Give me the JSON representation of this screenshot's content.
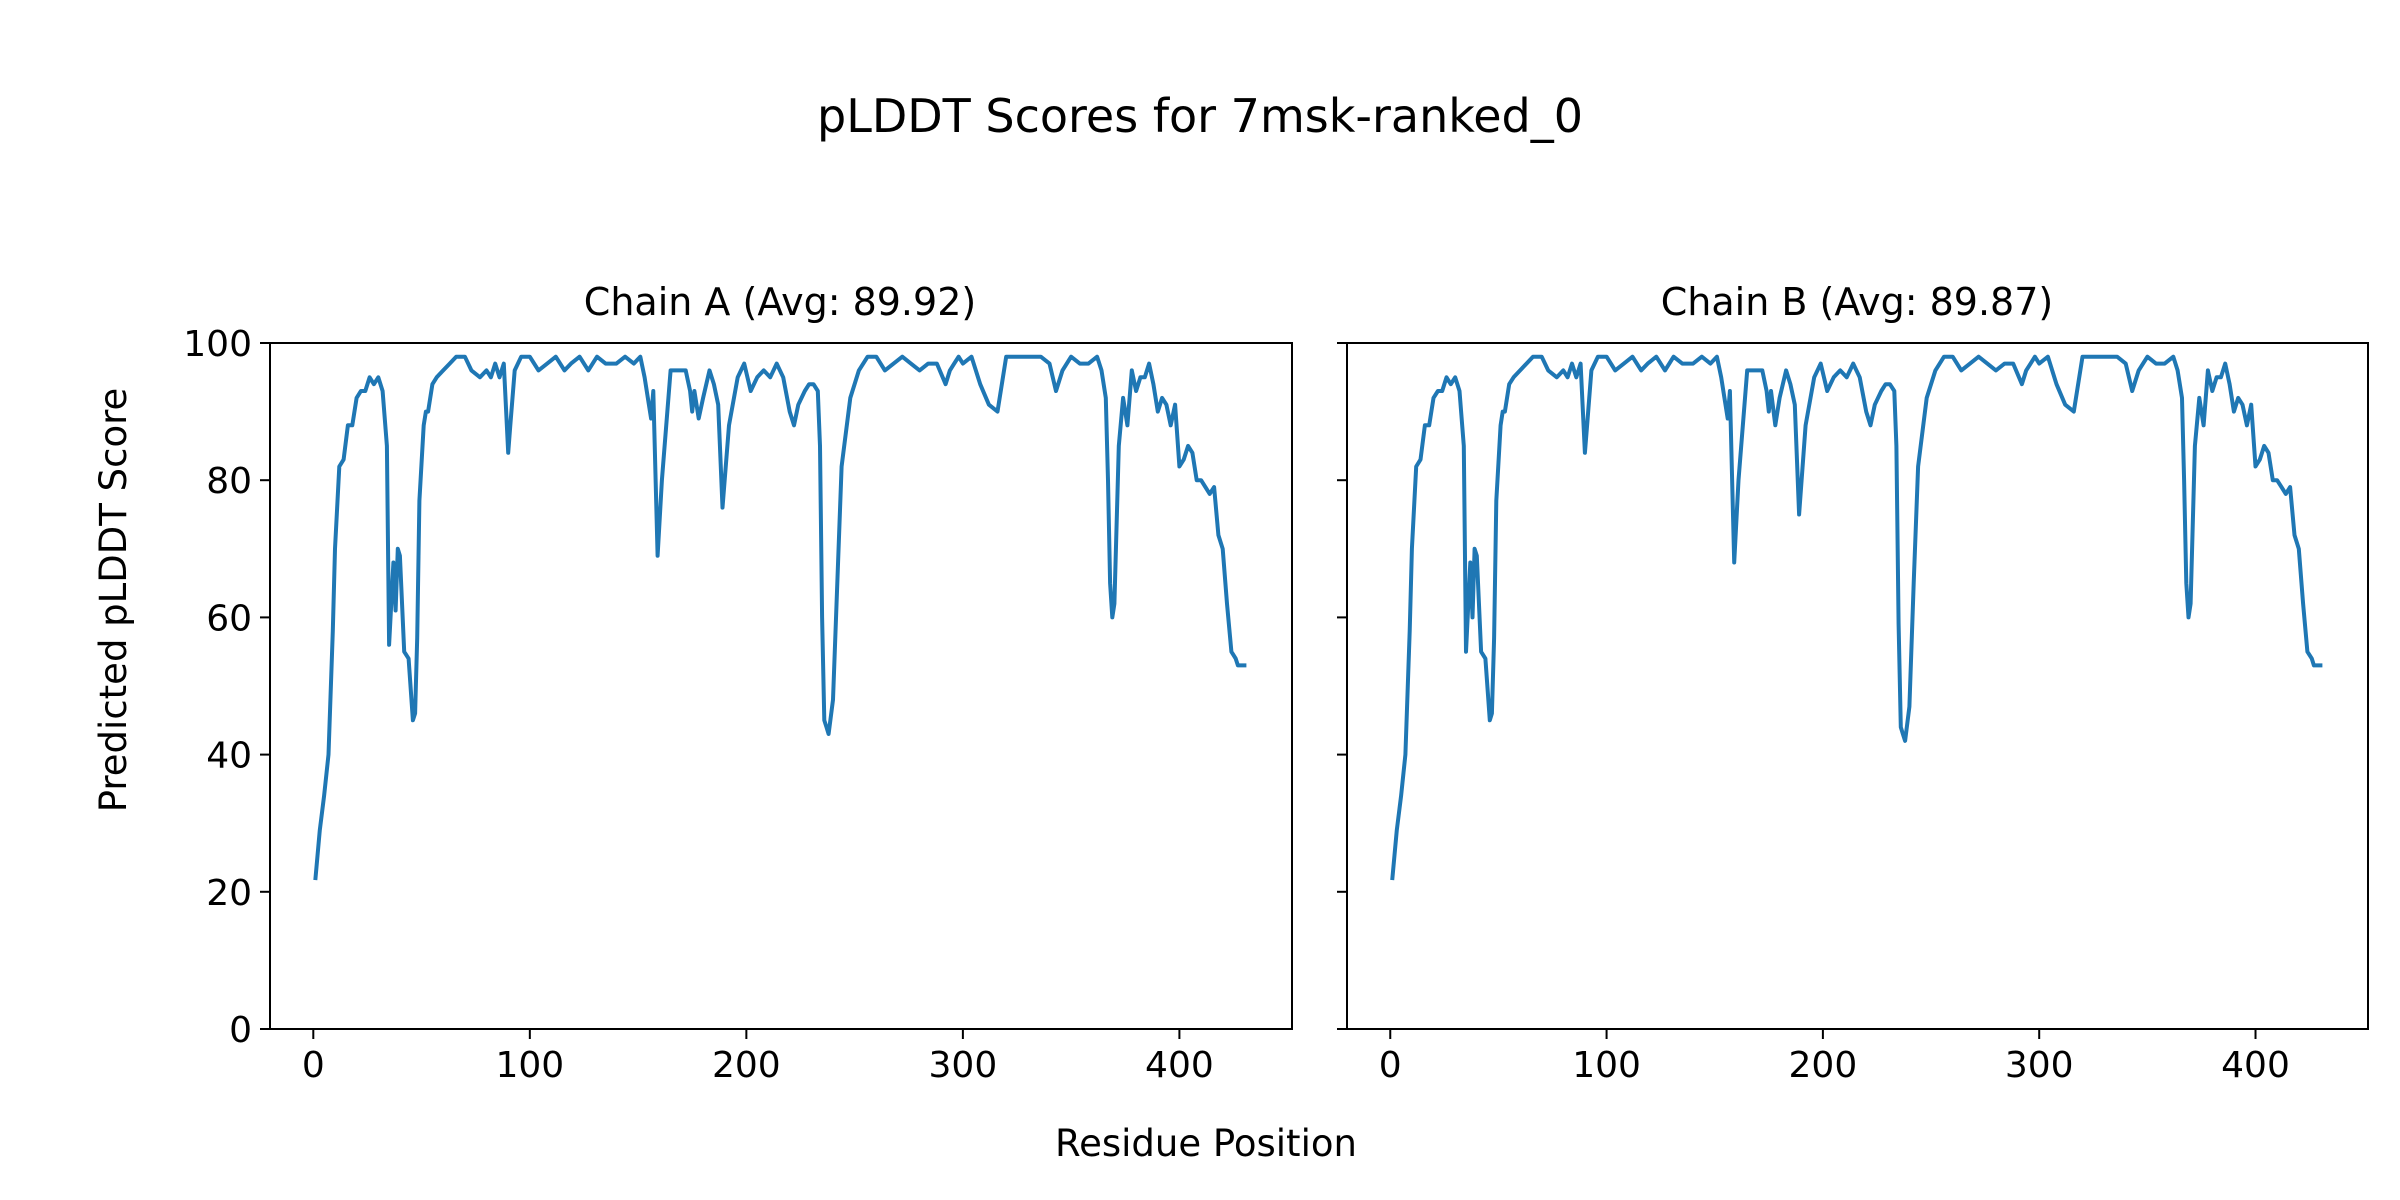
{
  "figure": {
    "title": "pLDDT Scores for 7msk-ranked_0",
    "xlabel": "Residue Position",
    "ylabel": "Predicted pLDDT Score"
  },
  "chart_data": [
    {
      "type": "line",
      "title": "Chain A (Avg: 89.92)",
      "xlabel": "Residue Position",
      "ylabel": "Predicted pLDDT Score",
      "xlim": [
        -20,
        452
      ],
      "ylim": [
        0,
        100
      ],
      "xticks": [
        "0",
        "100",
        "200",
        "300",
        "400"
      ],
      "yticks": [
        "0",
        "20",
        "40",
        "60",
        "80",
        "100"
      ],
      "color": "#1f77b4",
      "grid": false,
      "series": [
        {
          "x": [
            1,
            3,
            5,
            7,
            9,
            10,
            12,
            14,
            16,
            18,
            20,
            22,
            24,
            26,
            28,
            30,
            32,
            34,
            35,
            37,
            38,
            39,
            40,
            42,
            44,
            46,
            47,
            48,
            49,
            51,
            52,
            53,
            55,
            57,
            60,
            63,
            66,
            70,
            73,
            77,
            80,
            82,
            84,
            86,
            88,
            90,
            91,
            93,
            96,
            100,
            104,
            108,
            112,
            116,
            119,
            123,
            127,
            131,
            135,
            140,
            144,
            148,
            151,
            153,
            155,
            156,
            157,
            159,
            161,
            165,
            169,
            172,
            174,
            175,
            176,
            178,
            180,
            183,
            185,
            187,
            189,
            192,
            196,
            199,
            202,
            205,
            208,
            211,
            214,
            217,
            220,
            222,
            224,
            227,
            229,
            231,
            233,
            234,
            235,
            236,
            237,
            238,
            240,
            242,
            244,
            248,
            252,
            256,
            260,
            264,
            268,
            272,
            276,
            280,
            284,
            288,
            292,
            294,
            296,
            298,
            300,
            304,
            308,
            312,
            316,
            320,
            324,
            328,
            332,
            336,
            340,
            343,
            346,
            350,
            354,
            358,
            362,
            364,
            366,
            367,
            368,
            369,
            370,
            372,
            374,
            376,
            378,
            380,
            382,
            384,
            386,
            388,
            390,
            392,
            394,
            396,
            398,
            400,
            402,
            404,
            406,
            408,
            410,
            412,
            414,
            416,
            418,
            420,
            422,
            424,
            426,
            427,
            428,
            430
          ],
          "values": [
            22,
            29,
            34,
            40,
            58,
            70,
            82,
            83,
            88,
            88,
            92,
            93,
            93,
            95,
            94,
            95,
            93,
            85,
            56,
            68,
            61,
            70,
            69,
            55,
            54,
            45,
            46,
            57,
            77,
            88,
            90,
            90,
            94,
            95,
            96,
            97,
            98,
            98,
            96,
            95,
            96,
            95,
            97,
            95,
            97,
            84,
            88,
            96,
            98,
            98,
            96,
            97,
            98,
            96,
            97,
            98,
            96,
            98,
            97,
            97,
            98,
            97,
            98,
            95,
            91,
            89,
            93,
            69,
            80,
            96,
            96,
            96,
            93,
            90,
            93,
            89,
            92,
            96,
            94,
            91,
            76,
            88,
            95,
            97,
            93,
            95,
            96,
            95,
            97,
            95,
            90,
            88,
            91,
            93,
            94,
            94,
            93,
            85,
            60,
            45,
            44,
            43,
            48,
            65,
            82,
            92,
            96,
            98,
            98,
            96,
            97,
            98,
            97,
            96,
            97,
            97,
            94,
            96,
            97,
            98,
            97,
            98,
            94,
            91,
            90,
            98,
            98,
            98,
            98,
            98,
            97,
            93,
            96,
            98,
            97,
            97,
            98,
            96,
            92,
            80,
            65,
            60,
            62,
            85,
            92,
            88,
            96,
            93,
            95,
            95,
            97,
            94,
            90,
            92,
            91,
            88,
            91,
            82,
            83,
            85,
            84,
            80,
            80,
            79,
            78,
            79,
            72,
            70,
            62,
            55,
            54,
            53,
            53,
            53
          ]
        }
      ]
    },
    {
      "type": "line",
      "title": "Chain B (Avg: 89.87)",
      "xlabel": "Residue Position",
      "ylabel": "Predicted pLDDT Score",
      "xlim": [
        -20,
        452
      ],
      "ylim": [
        0,
        100
      ],
      "xticks": [
        "0",
        "100",
        "200",
        "300",
        "400"
      ],
      "yticks": [],
      "color": "#1f77b4",
      "grid": false,
      "series": [
        {
          "x": [
            1,
            3,
            5,
            7,
            9,
            10,
            12,
            14,
            16,
            18,
            20,
            22,
            24,
            26,
            28,
            30,
            32,
            34,
            35,
            37,
            38,
            39,
            40,
            42,
            44,
            46,
            47,
            48,
            49,
            51,
            52,
            53,
            55,
            57,
            60,
            63,
            66,
            70,
            73,
            77,
            80,
            82,
            84,
            86,
            88,
            90,
            91,
            93,
            96,
            100,
            104,
            108,
            112,
            116,
            119,
            123,
            127,
            131,
            135,
            140,
            144,
            148,
            151,
            153,
            155,
            156,
            157,
            159,
            161,
            165,
            169,
            172,
            174,
            175,
            176,
            178,
            180,
            183,
            185,
            187,
            189,
            192,
            196,
            199,
            202,
            205,
            208,
            211,
            214,
            217,
            220,
            222,
            224,
            227,
            229,
            231,
            233,
            234,
            235,
            236,
            237,
            238,
            240,
            242,
            244,
            248,
            252,
            256,
            260,
            264,
            268,
            272,
            276,
            280,
            284,
            288,
            292,
            294,
            296,
            298,
            300,
            304,
            308,
            312,
            316,
            320,
            324,
            328,
            332,
            336,
            340,
            343,
            346,
            350,
            354,
            358,
            362,
            364,
            366,
            367,
            368,
            369,
            370,
            372,
            374,
            376,
            378,
            380,
            382,
            384,
            386,
            388,
            390,
            392,
            394,
            396,
            398,
            400,
            402,
            404,
            406,
            408,
            410,
            412,
            414,
            416,
            418,
            420,
            422,
            424,
            426,
            427,
            428,
            430
          ],
          "values": [
            22,
            29,
            34,
            40,
            58,
            70,
            82,
            83,
            88,
            88,
            92,
            93,
            93,
            95,
            94,
            95,
            93,
            85,
            55,
            68,
            60,
            70,
            69,
            55,
            54,
            45,
            46,
            57,
            77,
            88,
            90,
            90,
            94,
            95,
            96,
            97,
            98,
            98,
            96,
            95,
            96,
            95,
            97,
            95,
            97,
            84,
            88,
            96,
            98,
            98,
            96,
            97,
            98,
            96,
            97,
            98,
            96,
            98,
            97,
            97,
            98,
            97,
            98,
            95,
            91,
            89,
            93,
            68,
            80,
            96,
            96,
            96,
            93,
            90,
            93,
            88,
            92,
            96,
            94,
            91,
            75,
            88,
            95,
            97,
            93,
            95,
            96,
            95,
            97,
            95,
            90,
            88,
            91,
            93,
            94,
            94,
            93,
            85,
            59,
            44,
            43,
            42,
            47,
            65,
            82,
            92,
            96,
            98,
            98,
            96,
            97,
            98,
            97,
            96,
            97,
            97,
            94,
            96,
            97,
            98,
            97,
            98,
            94,
            91,
            90,
            98,
            98,
            98,
            98,
            98,
            97,
            93,
            96,
            98,
            97,
            97,
            98,
            96,
            92,
            80,
            65,
            60,
            62,
            85,
            92,
            88,
            96,
            93,
            95,
            95,
            97,
            94,
            90,
            92,
            91,
            88,
            91,
            82,
            83,
            85,
            84,
            80,
            80,
            79,
            78,
            79,
            72,
            70,
            62,
            55,
            54,
            53,
            53,
            53
          ]
        }
      ]
    }
  ]
}
